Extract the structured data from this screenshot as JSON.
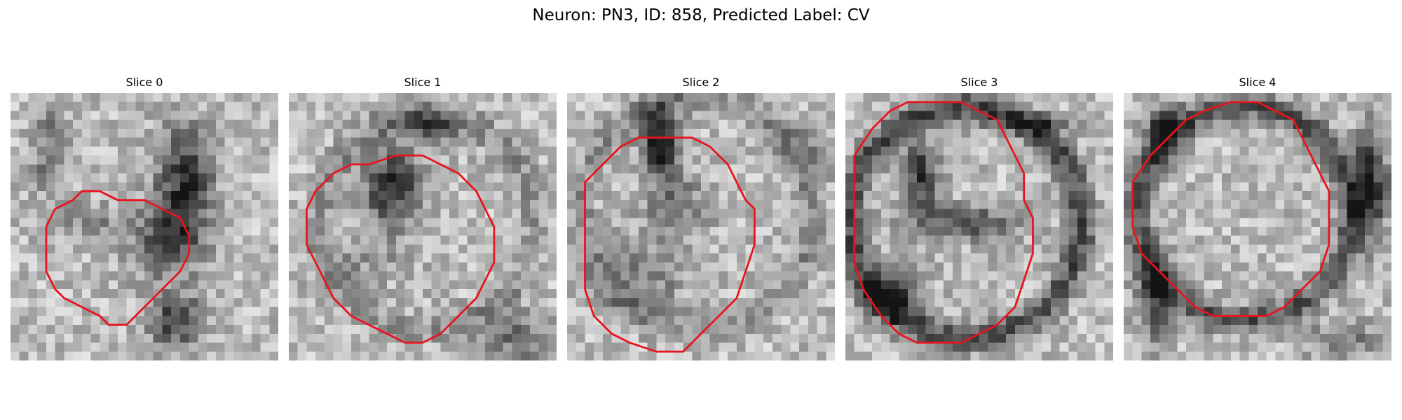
{
  "figure": {
    "title": "Neuron: PN3, ID: 858, Predicted Label: CV"
  },
  "slices": [
    {
      "title": "Slice 0"
    },
    {
      "title": "Slice 1"
    },
    {
      "title": "Slice 2"
    },
    {
      "title": "Slice 3"
    },
    {
      "title": "Slice 4"
    }
  ],
  "colors": {
    "contour": "#e8141e",
    "background": "#ffffff"
  }
}
